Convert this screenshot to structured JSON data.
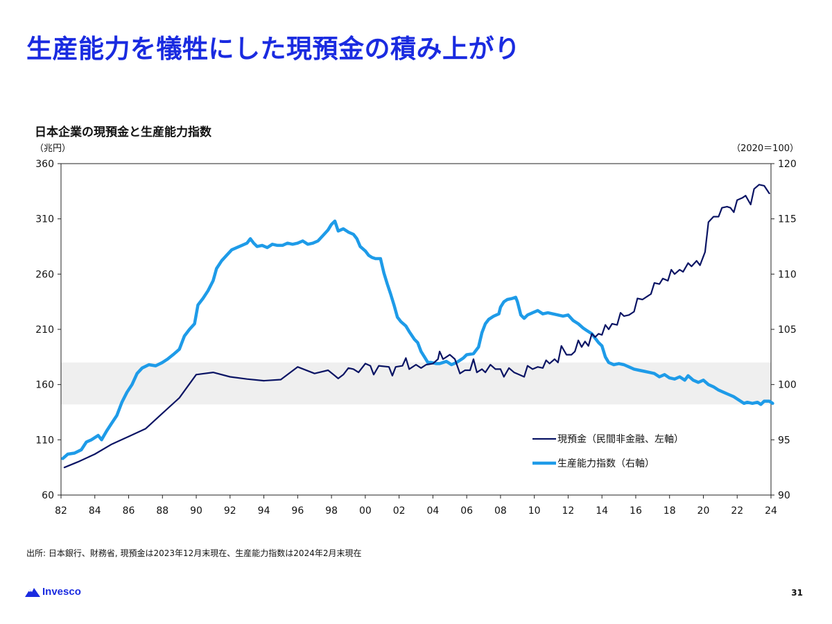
{
  "slide": {
    "title": "生産能力を犠牲にした現預金の積み上がり",
    "source": "出所: 日本銀行、財務省, 現預金は2023年12月末現在、生産能力指数は2024年2月末現在",
    "page_number": "31",
    "logo_text": "Invesco",
    "logo_icon": "mountain-logo-icon"
  },
  "chart_data": {
    "type": "line",
    "title": "日本企業の現預金と生産能力指数",
    "y_left_unit": "（兆円）",
    "y_right_unit": "（2020＝100）",
    "xlim": [
      1982,
      2024
    ],
    "x_ticks": [
      1982,
      1984,
      1986,
      1988,
      1990,
      1992,
      1994,
      1996,
      1998,
      2000,
      2002,
      2004,
      2006,
      2008,
      2010,
      2012,
      2014,
      2016,
      2018,
      2020,
      2022,
      2024
    ],
    "x_tick_labels": [
      "82",
      "84",
      "86",
      "88",
      "90",
      "92",
      "94",
      "96",
      "98",
      "00",
      "02",
      "04",
      "06",
      "08",
      "10",
      "12",
      "14",
      "16",
      "18",
      "20",
      "22",
      "24"
    ],
    "y_left": {
      "lim": [
        60,
        360
      ],
      "ticks": [
        60,
        110,
        160,
        210,
        260,
        310,
        360
      ]
    },
    "y_right": {
      "lim": [
        90,
        120
      ],
      "ticks": [
        90,
        95,
        100,
        105,
        110,
        115,
        120
      ]
    },
    "shaded_band": {
      "axis": "left",
      "from": 142,
      "to": 180,
      "color": "#efefef"
    },
    "grid": false,
    "legend_position": "lower-right",
    "series": [
      {
        "name": "現預金（民間非金融、左軸）",
        "axis": "left",
        "color": "#0a1464",
        "points": [
          [
            1982.2,
            85
          ],
          [
            1983.0,
            90
          ],
          [
            1984.0,
            97
          ],
          [
            1985.0,
            106
          ],
          [
            1986.0,
            113
          ],
          [
            1987.0,
            120
          ],
          [
            1988.0,
            134
          ],
          [
            1989.0,
            148
          ],
          [
            1990.0,
            169
          ],
          [
            1991.0,
            171
          ],
          [
            1992.0,
            167
          ],
          [
            1993.0,
            165
          ],
          [
            1994.0,
            163.5
          ],
          [
            1995.0,
            164.5
          ],
          [
            1996.0,
            176
          ],
          [
            1997.0,
            170
          ],
          [
            1997.8,
            173
          ],
          [
            1998.2,
            168
          ],
          [
            1998.4,
            165.5
          ],
          [
            1998.7,
            169
          ],
          [
            1999.0,
            175
          ],
          [
            1999.3,
            174
          ],
          [
            1999.6,
            171
          ],
          [
            2000.0,
            179
          ],
          [
            2000.3,
            177
          ],
          [
            2000.5,
            169
          ],
          [
            2000.8,
            177
          ],
          [
            2001.4,
            176
          ],
          [
            2001.6,
            168
          ],
          [
            2001.8,
            176
          ],
          [
            2002.2,
            177
          ],
          [
            2002.4,
            184
          ],
          [
            2002.6,
            174
          ],
          [
            2003.0,
            178
          ],
          [
            2003.3,
            175
          ],
          [
            2003.6,
            178
          ],
          [
            2004.0,
            179
          ],
          [
            2004.3,
            183
          ],
          [
            2004.4,
            190
          ],
          [
            2004.6,
            183
          ],
          [
            2004.8,
            185
          ],
          [
            2005.0,
            187
          ],
          [
            2005.3,
            183
          ],
          [
            2005.6,
            170
          ],
          [
            2005.9,
            173
          ],
          [
            2006.2,
            173
          ],
          [
            2006.4,
            183
          ],
          [
            2006.6,
            171
          ],
          [
            2006.9,
            174
          ],
          [
            2007.1,
            171
          ],
          [
            2007.4,
            178
          ],
          [
            2007.7,
            174
          ],
          [
            2008.0,
            174
          ],
          [
            2008.2,
            167
          ],
          [
            2008.5,
            175
          ],
          [
            2008.8,
            171
          ],
          [
            2009.1,
            169
          ],
          [
            2009.4,
            167
          ],
          [
            2009.6,
            177
          ],
          [
            2009.9,
            174
          ],
          [
            2010.2,
            176
          ],
          [
            2010.5,
            175
          ],
          [
            2010.7,
            182
          ],
          [
            2010.9,
            179
          ],
          [
            2011.2,
            183
          ],
          [
            2011.4,
            180
          ],
          [
            2011.6,
            195
          ],
          [
            2011.9,
            187
          ],
          [
            2012.2,
            187
          ],
          [
            2012.4,
            190
          ],
          [
            2012.6,
            200
          ],
          [
            2012.8,
            194
          ],
          [
            2013.0,
            199
          ],
          [
            2013.2,
            195
          ],
          [
            2013.4,
            206
          ],
          [
            2013.6,
            203
          ],
          [
            2013.8,
            206
          ],
          [
            2014.0,
            205
          ],
          [
            2014.2,
            214
          ],
          [
            2014.4,
            210
          ],
          [
            2014.6,
            215
          ],
          [
            2014.9,
            214
          ],
          [
            2015.1,
            225
          ],
          [
            2015.3,
            222
          ],
          [
            2015.6,
            223
          ],
          [
            2015.9,
            226
          ],
          [
            2016.1,
            238
          ],
          [
            2016.4,
            237
          ],
          [
            2016.7,
            240
          ],
          [
            2016.9,
            242
          ],
          [
            2017.1,
            252
          ],
          [
            2017.4,
            251
          ],
          [
            2017.6,
            256
          ],
          [
            2017.9,
            254
          ],
          [
            2018.1,
            264
          ],
          [
            2018.3,
            260
          ],
          [
            2018.6,
            264
          ],
          [
            2018.8,
            262
          ],
          [
            2019.1,
            270
          ],
          [
            2019.3,
            267
          ],
          [
            2019.6,
            272
          ],
          [
            2019.8,
            268
          ],
          [
            2020.1,
            280
          ],
          [
            2020.3,
            307
          ],
          [
            2020.6,
            312
          ],
          [
            2020.9,
            312
          ],
          [
            2021.1,
            320
          ],
          [
            2021.4,
            321
          ],
          [
            2021.6,
            320
          ],
          [
            2021.8,
            316
          ],
          [
            2022.0,
            327
          ],
          [
            2022.3,
            329
          ],
          [
            2022.5,
            331
          ],
          [
            2022.8,
            323
          ],
          [
            2023.0,
            337
          ],
          [
            2023.3,
            341
          ],
          [
            2023.6,
            340
          ],
          [
            2023.9,
            333
          ]
        ]
      },
      {
        "name": "生産能力指数（右軸）",
        "axis": "right",
        "color": "#1e9be8",
        "points": [
          [
            1982.1,
            93.3
          ],
          [
            1982.4,
            93.7
          ],
          [
            1982.8,
            93.8
          ],
          [
            1983.2,
            94.1
          ],
          [
            1983.5,
            94.8
          ],
          [
            1983.8,
            95.0
          ],
          [
            1984.2,
            95.4
          ],
          [
            1984.4,
            95.0
          ],
          [
            1984.7,
            95.8
          ],
          [
            1985.0,
            96.5
          ],
          [
            1985.3,
            97.2
          ],
          [
            1985.6,
            98.4
          ],
          [
            1985.9,
            99.3
          ],
          [
            1986.2,
            100.0
          ],
          [
            1986.5,
            101.0
          ],
          [
            1986.8,
            101.5
          ],
          [
            1987.2,
            101.8
          ],
          [
            1987.6,
            101.7
          ],
          [
            1988.0,
            102.0
          ],
          [
            1988.3,
            102.3
          ],
          [
            1988.7,
            102.8
          ],
          [
            1989.0,
            103.2
          ],
          [
            1989.3,
            104.4
          ],
          [
            1989.6,
            105.0
          ],
          [
            1989.9,
            105.5
          ],
          [
            1990.1,
            107.2
          ],
          [
            1990.4,
            107.8
          ],
          [
            1990.7,
            108.5
          ],
          [
            1991.0,
            109.4
          ],
          [
            1991.2,
            110.5
          ],
          [
            1991.5,
            111.2
          ],
          [
            1991.8,
            111.7
          ],
          [
            1992.1,
            112.2
          ],
          [
            1992.4,
            112.4
          ],
          [
            1992.7,
            112.6
          ],
          [
            1993.0,
            112.8
          ],
          [
            1993.2,
            113.2
          ],
          [
            1993.4,
            112.8
          ],
          [
            1993.6,
            112.5
          ],
          [
            1993.9,
            112.6
          ],
          [
            1994.2,
            112.4
          ],
          [
            1994.5,
            112.7
          ],
          [
            1994.8,
            112.6
          ],
          [
            1995.1,
            112.6
          ],
          [
            1995.4,
            112.8
          ],
          [
            1995.7,
            112.7
          ],
          [
            1996.0,
            112.8
          ],
          [
            1996.3,
            113.0
          ],
          [
            1996.6,
            112.7
          ],
          [
            1996.9,
            112.8
          ],
          [
            1997.2,
            113.0
          ],
          [
            1997.5,
            113.5
          ],
          [
            1997.8,
            114.0
          ],
          [
            1998.0,
            114.5
          ],
          [
            1998.2,
            114.8
          ],
          [
            1998.4,
            113.9
          ],
          [
            1998.7,
            114.1
          ],
          [
            1999.0,
            113.8
          ],
          [
            1999.3,
            113.6
          ],
          [
            1999.5,
            113.2
          ],
          [
            1999.7,
            112.5
          ],
          [
            2000.0,
            112.1
          ],
          [
            2000.2,
            111.7
          ],
          [
            2000.4,
            111.5
          ],
          [
            2000.6,
            111.4
          ],
          [
            2000.9,
            111.4
          ],
          [
            2001.1,
            110.1
          ],
          [
            2001.3,
            109.1
          ],
          [
            2001.5,
            108.2
          ],
          [
            2001.7,
            107.2
          ],
          [
            2001.9,
            106.1
          ],
          [
            2002.1,
            105.7
          ],
          [
            2002.4,
            105.3
          ],
          [
            2002.6,
            104.8
          ],
          [
            2002.9,
            104.1
          ],
          [
            2003.1,
            103.8
          ],
          [
            2003.3,
            103.0
          ],
          [
            2003.5,
            102.5
          ],
          [
            2003.7,
            102.0
          ],
          [
            2003.9,
            102.0
          ],
          [
            2004.2,
            101.9
          ],
          [
            2004.4,
            101.9
          ],
          [
            2004.6,
            102.0
          ],
          [
            2004.8,
            102.1
          ],
          [
            2005.1,
            101.8
          ],
          [
            2005.4,
            102.0
          ],
          [
            2005.6,
            102.2
          ],
          [
            2005.8,
            102.4
          ],
          [
            2006.0,
            102.7
          ],
          [
            2006.4,
            102.8
          ],
          [
            2006.7,
            103.4
          ],
          [
            2006.9,
            104.7
          ],
          [
            2007.1,
            105.5
          ],
          [
            2007.3,
            105.9
          ],
          [
            2007.6,
            106.2
          ],
          [
            2007.9,
            106.4
          ],
          [
            2008.0,
            107.0
          ],
          [
            2008.2,
            107.5
          ],
          [
            2008.4,
            107.7
          ],
          [
            2008.7,
            107.8
          ],
          [
            2008.9,
            107.9
          ],
          [
            2009.0,
            107.5
          ],
          [
            2009.2,
            106.3
          ],
          [
            2009.4,
            106.0
          ],
          [
            2009.6,
            106.3
          ],
          [
            2009.9,
            106.5
          ],
          [
            2010.2,
            106.7
          ],
          [
            2010.5,
            106.4
          ],
          [
            2010.8,
            106.5
          ],
          [
            2011.1,
            106.4
          ],
          [
            2011.4,
            106.3
          ],
          [
            2011.7,
            106.2
          ],
          [
            2012.0,
            106.3
          ],
          [
            2012.3,
            105.8
          ],
          [
            2012.6,
            105.5
          ],
          [
            2012.9,
            105.1
          ],
          [
            2013.1,
            104.9
          ],
          [
            2013.4,
            104.6
          ],
          [
            2013.6,
            104.2
          ],
          [
            2013.8,
            103.8
          ],
          [
            2014.0,
            103.5
          ],
          [
            2014.2,
            102.5
          ],
          [
            2014.4,
            102.0
          ],
          [
            2014.7,
            101.8
          ],
          [
            2015.0,
            101.9
          ],
          [
            2015.3,
            101.8
          ],
          [
            2015.6,
            101.6
          ],
          [
            2015.9,
            101.4
          ],
          [
            2016.2,
            101.3
          ],
          [
            2016.5,
            101.2
          ],
          [
            2016.8,
            101.1
          ],
          [
            2017.1,
            101.0
          ],
          [
            2017.4,
            100.7
          ],
          [
            2017.7,
            100.9
          ],
          [
            2018.0,
            100.6
          ],
          [
            2018.3,
            100.5
          ],
          [
            2018.6,
            100.7
          ],
          [
            2018.9,
            100.4
          ],
          [
            2019.1,
            100.8
          ],
          [
            2019.4,
            100.4
          ],
          [
            2019.7,
            100.2
          ],
          [
            2020.0,
            100.4
          ],
          [
            2020.3,
            100.0
          ],
          [
            2020.6,
            99.8
          ],
          [
            2020.9,
            99.5
          ],
          [
            2021.2,
            99.3
          ],
          [
            2021.5,
            99.1
          ],
          [
            2021.8,
            98.9
          ],
          [
            2022.1,
            98.6
          ],
          [
            2022.4,
            98.3
          ],
          [
            2022.6,
            98.4
          ],
          [
            2022.9,
            98.3
          ],
          [
            2023.2,
            98.4
          ],
          [
            2023.4,
            98.2
          ],
          [
            2023.6,
            98.5
          ],
          [
            2023.9,
            98.5
          ],
          [
            2024.1,
            98.3
          ]
        ]
      }
    ]
  }
}
